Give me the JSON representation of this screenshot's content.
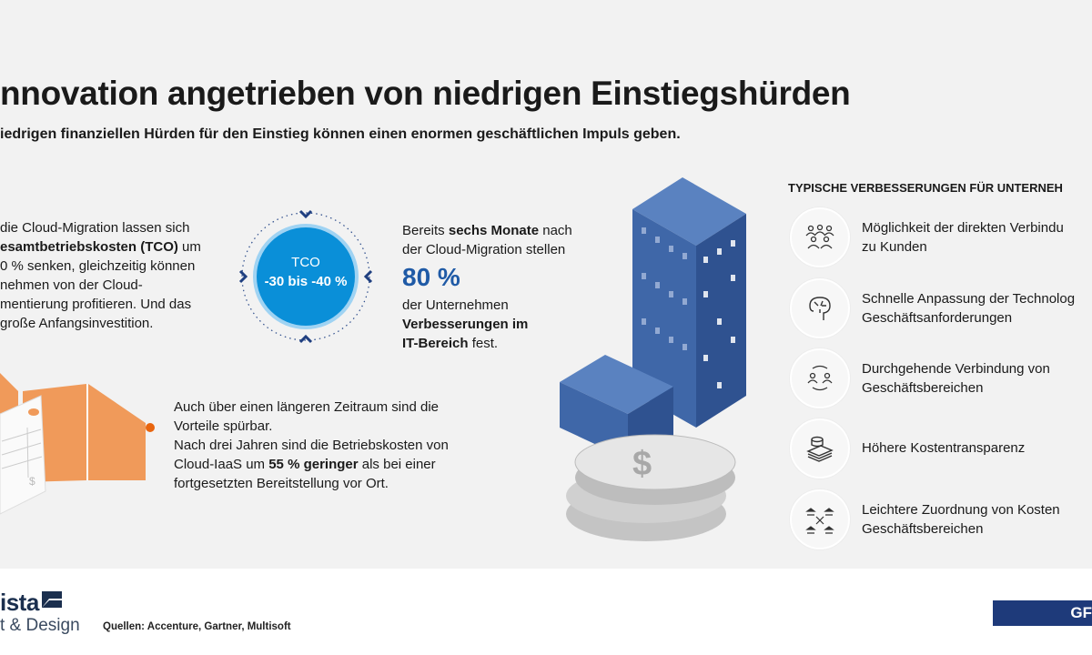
{
  "title": "nnovation angetrieben von niedrigen Einstiegshürden",
  "subtitle": "iedrigen finanziellen Hürden für den Einstieg können einen enormen geschäftlichen Impuls geben.",
  "left_block": {
    "lines": [
      {
        "pre": " die Cloud-Migration lassen sich",
        "bold": "",
        "post": ""
      },
      {
        "pre": "",
        "bold": "esamtbetriebskosten (TCO)",
        "post": " um"
      },
      {
        "pre": "0 % senken, gleichzeitig können",
        "bold": "",
        "post": ""
      },
      {
        "pre": "nehmen von der Cloud-",
        "bold": "",
        "post": ""
      },
      {
        "pre": "mentierung profitieren. Und das",
        "bold": "",
        "post": ""
      },
      {
        "pre": "große Anfangsinvestition.",
        "bold": "",
        "post": ""
      }
    ]
  },
  "tco_badge": {
    "label": "TCO",
    "value": "-30 bis -40 %",
    "color": "#0a8fd8"
  },
  "middle_block": {
    "line1_pre": "Bereits ",
    "line1_bold": "sechs Monate",
    "line1_post": " nach",
    "line2": "der Cloud-Migration stellen",
    "big": "80 %",
    "line3": "der Unternehmen",
    "line4_bold": "Verbesserungen im",
    "line5_bold": "IT-Bereich",
    "line5_post": " fest."
  },
  "bottom_block": {
    "line1": "Auch über einen längeren Zeitraum sind die",
    "line2": "Vorteile spürbar.",
    "line3": "Nach drei Jahren sind die Betriebskosten von",
    "line4_pre": "Cloud-IaaS um ",
    "line4_bold": "55 % geringer",
    "line4_post": " als bei einer",
    "line5": "fortgesetzten Bereitstellung vor Ort."
  },
  "right_panel": {
    "heading": "TYPISCHE VERBESSERUNGEN FÜR UNTERNEH",
    "items": [
      {
        "icon": "people-group-icon",
        "line1": "Möglichkeit der direkten Verbindu",
        "line2": "zu Kunden"
      },
      {
        "icon": "brain-circuit-icon",
        "line1": "Schnelle Anpassung der Technolog",
        "line2": "Geschäftsanforderungen"
      },
      {
        "icon": "people-exchange-icon",
        "line1": "Durchgehende Verbindung von",
        "line2": "Geschäftsbereichen"
      },
      {
        "icon": "money-stack-icon",
        "line1": "Höhere Kostentransparenz",
        "line2": ""
      },
      {
        "icon": "bank-network-icon",
        "line1": "Leichtere Zuordnung von Kosten",
        "line2": "Geschäftsbereichen"
      }
    ]
  },
  "footer": {
    "logo_top": "ista",
    "logo_bottom": "t & Design",
    "sources": "Quellen: Accenture, Gartner, Multisoft",
    "badge": "GF",
    "badge_color": "#1e3a7a"
  },
  "colors": {
    "accent_blue": "#0a8fd8",
    "building": "#3f67a8",
    "orange": "#f09a5a"
  }
}
